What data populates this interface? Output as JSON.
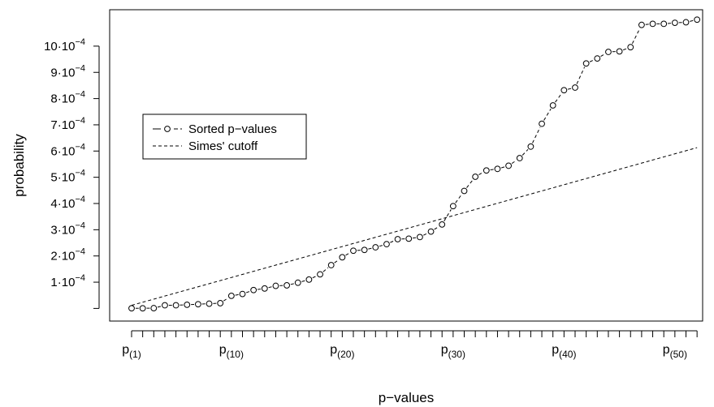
{
  "chart_data": {
    "type": "scatter",
    "title": "",
    "xlabel": "p−values",
    "ylabel": "probability",
    "ylim": [
      -6e-06,
      0.0011
    ],
    "y_ticks": [
      {
        "value": 0.0001,
        "mantissa": "1",
        "exponent": "−4"
      },
      {
        "value": 0.0002,
        "mantissa": "2",
        "exponent": "−4"
      },
      {
        "value": 0.0003,
        "mantissa": "3",
        "exponent": "−4"
      },
      {
        "value": 0.0004,
        "mantissa": "4",
        "exponent": "−4"
      },
      {
        "value": 0.0005,
        "mantissa": "5",
        "exponent": "−4"
      },
      {
        "value": 0.0006,
        "mantissa": "6",
        "exponent": "−4"
      },
      {
        "value": 0.0007,
        "mantissa": "7",
        "exponent": "−4"
      },
      {
        "value": 0.0008,
        "mantissa": "8",
        "exponent": "−4"
      },
      {
        "value": 0.0009,
        "mantissa": "9",
        "exponent": "−4"
      },
      {
        "value": 0.001,
        "mantissa": "10",
        "exponent": "−4"
      }
    ],
    "x_tick_labels": [
      {
        "index": 1,
        "base": "p",
        "sub": "(1)"
      },
      {
        "index": 10,
        "base": "p",
        "sub": "(10)"
      },
      {
        "index": 20,
        "base": "p",
        "sub": "(20)"
      },
      {
        "index": 30,
        "base": "p",
        "sub": "(30)"
      },
      {
        "index": 40,
        "base": "p",
        "sub": "(40)"
      },
      {
        "index": 50,
        "base": "p",
        "sub": "(50)"
      }
    ],
    "x": [
      1,
      2,
      3,
      4,
      5,
      6,
      7,
      8,
      9,
      10,
      11,
      12,
      13,
      14,
      15,
      16,
      17,
      18,
      19,
      20,
      21,
      22,
      23,
      24,
      25,
      26,
      27,
      28,
      29,
      30,
      31,
      32,
      33,
      34,
      35,
      36,
      37,
      38,
      39,
      40,
      41,
      42,
      43,
      44,
      45,
      46,
      47,
      48,
      49,
      50,
      51,
      52
    ],
    "series": [
      {
        "name": "Sorted p−values",
        "style": "points-dashed",
        "values": [
          5e-07,
          5e-07,
          1e-06,
          1.2e-05,
          1.2e-05,
          1.4e-05,
          1.6e-05,
          1.8e-05,
          2e-05,
          4.8e-05,
          5.5e-05,
          7e-05,
          7.6e-05,
          8.6e-05,
          8.8e-05,
          9.8e-05,
          0.00011,
          0.00013,
          0.000165,
          0.000195,
          0.00022,
          0.000223,
          0.000233,
          0.000245,
          0.000264,
          0.000266,
          0.000272,
          0.000293,
          0.00032,
          0.00039,
          0.000448,
          0.000502,
          0.000526,
          0.000532,
          0.000544,
          0.000573,
          0.000617,
          0.000704,
          0.000774,
          0.000832,
          0.000842,
          0.000934,
          0.000953,
          0.000978,
          0.00098,
          0.000996,
          0.001081,
          0.001085,
          0.001085,
          0.001089,
          0.001091,
          0.001101
        ]
      },
      {
        "name": "Simes' cutoff",
        "style": "dashed-line",
        "x_range": [
          1,
          52
        ],
        "y_range": [
          1.18e-05,
          0.000613
        ]
      }
    ],
    "legend": {
      "position": "left",
      "entries": [
        "Sorted p−values",
        "Simes' cutoff"
      ]
    },
    "grid": false
  }
}
